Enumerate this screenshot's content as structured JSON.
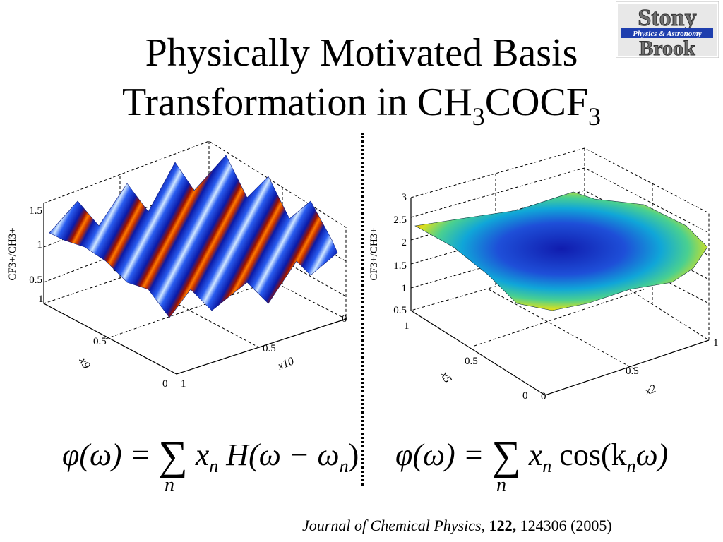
{
  "title": {
    "line1": "Physically Motivated Basis",
    "line2_prefix": "Transformation in CH",
    "sub_a": "3",
    "line2_mid": "COCF",
    "sub_b": "3"
  },
  "logo": {
    "word_top": "Stony",
    "word_bottom": "Brook",
    "banner": "Physics & Astronomy",
    "colors": {
      "banner": "#1f3fae",
      "letters": "#6f6f6f"
    }
  },
  "plot_left": {
    "zlabel": "CF3+/CH3+",
    "z_ticks": [
      "1.5",
      "1",
      "0.5"
    ],
    "xlabel": "x10",
    "ylabel": "x9",
    "x_ticks": [
      "1",
      "0.5",
      "0"
    ],
    "y_ticks": [
      "1",
      "0.5",
      "0"
    ]
  },
  "plot_right": {
    "zlabel": "CF3+/CH3+",
    "z_ticks": [
      "3",
      "2.5",
      "2",
      "1.5",
      "1",
      "0.5"
    ],
    "xlabel": "x2",
    "ylabel": "x5",
    "x_ticks": [
      "0",
      "0.5",
      "1"
    ],
    "y_ticks": [
      "1",
      "0.5",
      "0"
    ]
  },
  "formula_left": {
    "lhs": "φ(ω) =",
    "sum": "∑",
    "term_a": "x",
    "sub_n": "n",
    "term_b": "H",
    "arg": "(ω − ω",
    "arg_sub": "n",
    "close": ")",
    "under": "n"
  },
  "formula_right": {
    "lhs": "φ(ω) =",
    "sum": "∑",
    "term_a": "x",
    "sub_n": "n",
    "func": "cos(k",
    "k_sub": "n",
    "close": "ω)",
    "under": "n"
  },
  "citation": {
    "journal": "Journal of Chemical Physics,",
    "volume": "122,",
    "pages": "124306 (2005)"
  }
}
